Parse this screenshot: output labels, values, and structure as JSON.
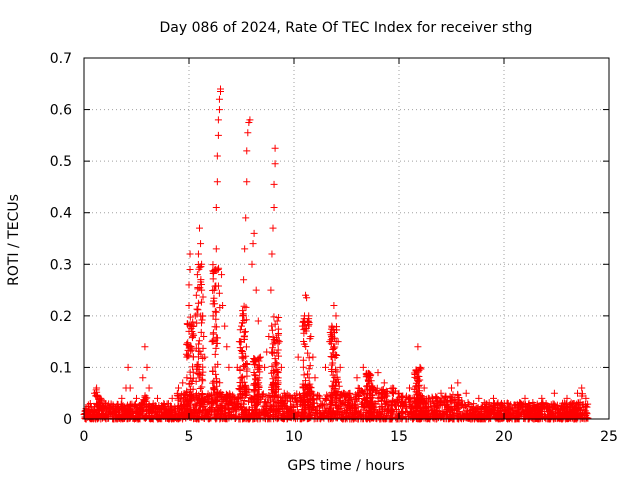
{
  "chart_data": {
    "type": "scatter",
    "title": "Day 086 of 2024, Rate Of TEC Index for receiver sthg",
    "xlabel": "GPS time / hours",
    "ylabel": "ROTI / TECUs",
    "xlim": [
      0,
      25
    ],
    "ylim": [
      0,
      0.7
    ],
    "xticks": [
      0,
      5,
      10,
      15,
      20,
      25
    ],
    "yticks": [
      0,
      0.1,
      0.2,
      0.3,
      0.4,
      0.5,
      0.6,
      0.7
    ],
    "xtick_labels": [
      "0",
      "5",
      "10",
      "15",
      "20",
      "25"
    ],
    "ytick_labels": [
      "0",
      "0.1",
      "0.2",
      "0.3",
      "0.4",
      "0.5",
      "0.6",
      "0.7"
    ],
    "grid": true,
    "marker": "+",
    "series_color": "#ff0000",
    "series": [
      {
        "name": "ROTI",
        "points": [
          [
            0.1,
            0.02
          ],
          [
            0.3,
            0.03
          ],
          [
            0.5,
            0.05
          ],
          [
            0.6,
            0.06
          ],
          [
            0.8,
            0.04
          ],
          [
            1.0,
            0.03
          ],
          [
            1.2,
            0.02
          ],
          [
            1.5,
            0.02
          ],
          [
            1.8,
            0.04
          ],
          [
            2.0,
            0.06
          ],
          [
            2.1,
            0.1
          ],
          [
            2.2,
            0.06
          ],
          [
            2.5,
            0.04
          ],
          [
            2.8,
            0.08
          ],
          [
            2.9,
            0.14
          ],
          [
            3.0,
            0.1
          ],
          [
            3.1,
            0.06
          ],
          [
            3.5,
            0.04
          ],
          [
            3.8,
            0.03
          ],
          [
            4.2,
            0.04
          ],
          [
            4.5,
            0.06
          ],
          [
            4.7,
            0.07
          ],
          [
            4.9,
            0.08
          ],
          [
            4.9,
            0.12
          ],
          [
            5.0,
            0.17
          ],
          [
            5.0,
            0.22
          ],
          [
            5.0,
            0.26
          ],
          [
            5.05,
            0.29
          ],
          [
            5.05,
            0.32
          ],
          [
            5.1,
            0.14
          ],
          [
            5.2,
            0.18
          ],
          [
            5.3,
            0.2
          ],
          [
            5.35,
            0.24
          ],
          [
            5.4,
            0.28
          ],
          [
            5.45,
            0.32
          ],
          [
            5.5,
            0.37
          ],
          [
            5.55,
            0.34
          ],
          [
            5.6,
            0.3
          ],
          [
            5.6,
            0.25
          ],
          [
            5.65,
            0.2
          ],
          [
            5.7,
            0.16
          ],
          [
            5.75,
            0.12
          ],
          [
            6.1,
            0.15
          ],
          [
            6.15,
            0.2
          ],
          [
            6.2,
            0.25
          ],
          [
            6.25,
            0.29
          ],
          [
            6.3,
            0.33
          ],
          [
            6.3,
            0.41
          ],
          [
            6.35,
            0.46
          ],
          [
            6.35,
            0.51
          ],
          [
            6.4,
            0.55
          ],
          [
            6.4,
            0.58
          ],
          [
            6.45,
            0.6
          ],
          [
            6.45,
            0.62
          ],
          [
            6.5,
            0.635
          ],
          [
            6.5,
            0.64
          ],
          [
            6.55,
            0.28
          ],
          [
            6.6,
            0.22
          ],
          [
            6.7,
            0.18
          ],
          [
            6.8,
            0.14
          ],
          [
            6.9,
            0.1
          ],
          [
            7.3,
            0.1
          ],
          [
            7.4,
            0.15
          ],
          [
            7.5,
            0.18
          ],
          [
            7.55,
            0.2
          ],
          [
            7.6,
            0.27
          ],
          [
            7.65,
            0.33
          ],
          [
            7.7,
            0.39
          ],
          [
            7.75,
            0.46
          ],
          [
            7.75,
            0.52
          ],
          [
            7.8,
            0.555
          ],
          [
            7.85,
            0.575
          ],
          [
            7.9,
            0.58
          ],
          [
            8.0,
            0.3
          ],
          [
            8.05,
            0.34
          ],
          [
            8.1,
            0.36
          ],
          [
            8.2,
            0.25
          ],
          [
            8.3,
            0.19
          ],
          [
            8.4,
            0.12
          ],
          [
            8.6,
            0.1
          ],
          [
            8.7,
            0.13
          ],
          [
            8.8,
            0.16
          ],
          [
            8.9,
            0.25
          ],
          [
            8.95,
            0.32
          ],
          [
            9.0,
            0.37
          ],
          [
            9.05,
            0.41
          ],
          [
            9.05,
            0.455
          ],
          [
            9.1,
            0.495
          ],
          [
            9.1,
            0.525
          ],
          [
            9.2,
            0.19
          ],
          [
            9.3,
            0.15
          ],
          [
            9.4,
            0.1
          ],
          [
            10.2,
            0.12
          ],
          [
            10.4,
            0.18
          ],
          [
            10.5,
            0.2
          ],
          [
            10.55,
            0.24
          ],
          [
            10.6,
            0.235
          ],
          [
            10.7,
            0.2
          ],
          [
            10.8,
            0.16
          ],
          [
            10.9,
            0.12
          ],
          [
            11.0,
            0.08
          ],
          [
            11.5,
            0.1
          ],
          [
            11.7,
            0.15
          ],
          [
            11.8,
            0.18
          ],
          [
            11.9,
            0.22
          ],
          [
            12.0,
            0.2
          ],
          [
            12.1,
            0.15
          ],
          [
            12.2,
            0.1
          ],
          [
            13.0,
            0.08
          ],
          [
            13.3,
            0.1
          ],
          [
            13.6,
            0.08
          ],
          [
            14.0,
            0.09
          ],
          [
            14.3,
            0.07
          ],
          [
            14.7,
            0.06
          ],
          [
            15.0,
            0.05
          ],
          [
            15.5,
            0.06
          ],
          [
            15.9,
            0.14
          ],
          [
            16.0,
            0.1
          ],
          [
            16.2,
            0.06
          ],
          [
            16.6,
            0.04
          ],
          [
            17.0,
            0.05
          ],
          [
            17.5,
            0.06
          ],
          [
            17.8,
            0.07
          ],
          [
            18.2,
            0.05
          ],
          [
            18.8,
            0.04
          ],
          [
            19.5,
            0.04
          ],
          [
            20.2,
            0.03
          ],
          [
            21.0,
            0.04
          ],
          [
            21.8,
            0.04
          ],
          [
            22.4,
            0.05
          ],
          [
            23.0,
            0.04
          ],
          [
            23.5,
            0.05
          ],
          [
            23.7,
            0.06
          ],
          [
            23.9,
            0.04
          ]
        ]
      }
    ]
  }
}
